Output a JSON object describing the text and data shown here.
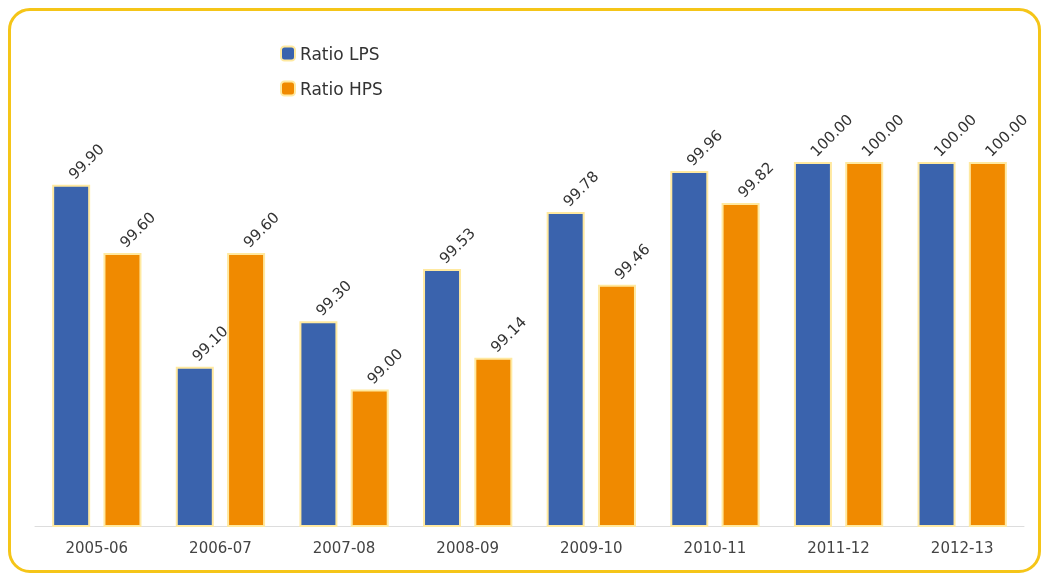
{
  "chart_data": {
    "type": "bar",
    "categories": [
      "2005-06",
      "2006-07",
      "2007-08",
      "2008-09",
      "2009-10",
      "2010-11",
      "2011-12",
      "2012-13"
    ],
    "series": [
      {
        "name": "Ratio LPS",
        "color": "#3a63ad",
        "values": [
          99.9,
          99.1,
          99.3,
          99.53,
          99.78,
          99.96,
          100.0,
          100.0
        ],
        "value_labels": [
          "99.90",
          "99.10",
          "99.30",
          "99.53",
          "99.78",
          "99.96",
          "100.00",
          "100.00"
        ]
      },
      {
        "name": "Ratio HPS",
        "color": "#f08a00",
        "values": [
          99.6,
          99.6,
          99.0,
          99.14,
          99.46,
          99.82,
          100.0,
          100.0
        ],
        "value_labels": [
          "99.60",
          "99.60",
          "99.00",
          "99.14",
          "99.46",
          "99.82",
          "100.00",
          "100.00"
        ]
      }
    ],
    "ylim": [
      98.4,
      100
    ],
    "tick_labels": "x",
    "legend": "top left"
  }
}
